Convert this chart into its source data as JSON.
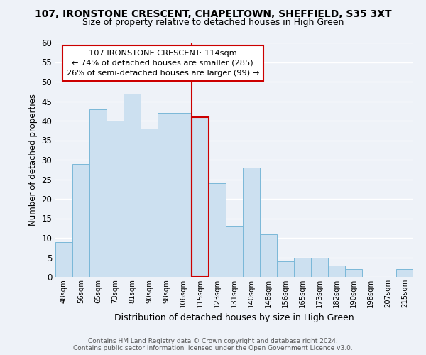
{
  "title": "107, IRONSTONE CRESCENT, CHAPELTOWN, SHEFFIELD, S35 3XT",
  "subtitle": "Size of property relative to detached houses in High Green",
  "xlabel": "Distribution of detached houses by size in High Green",
  "ylabel": "Number of detached properties",
  "bin_labels": [
    "48sqm",
    "56sqm",
    "65sqm",
    "73sqm",
    "81sqm",
    "90sqm",
    "98sqm",
    "106sqm",
    "115sqm",
    "123sqm",
    "131sqm",
    "140sqm",
    "148sqm",
    "156sqm",
    "165sqm",
    "173sqm",
    "182sqm",
    "190sqm",
    "198sqm",
    "207sqm",
    "215sqm"
  ],
  "bar_values": [
    9,
    29,
    43,
    40,
    47,
    38,
    42,
    42,
    41,
    24,
    13,
    28,
    11,
    4,
    5,
    5,
    3,
    2,
    0,
    0,
    2
  ],
  "bar_color": "#cce0f0",
  "bar_edge_color": "#7ab8d8",
  "highlight_bar_index": 8,
  "highlight_line_color": "#cc0000",
  "ylim": [
    0,
    60
  ],
  "yticks": [
    0,
    5,
    10,
    15,
    20,
    25,
    30,
    35,
    40,
    45,
    50,
    55,
    60
  ],
  "annotation_title": "107 IRONSTONE CRESCENT: 114sqm",
  "annotation_line1": "← 74% of detached houses are smaller (285)",
  "annotation_line2": "26% of semi-detached houses are larger (99) →",
  "annotation_box_facecolor": "#ffffff",
  "annotation_box_edgecolor": "#cc0000",
  "footer_line1": "Contains HM Land Registry data © Crown copyright and database right 2024.",
  "footer_line2": "Contains public sector information licensed under the Open Government Licence v3.0.",
  "background_color": "#eef2f8",
  "grid_color": "#ffffff",
  "fig_width": 6.0,
  "fig_height": 5.0,
  "fig_dpi": 100
}
